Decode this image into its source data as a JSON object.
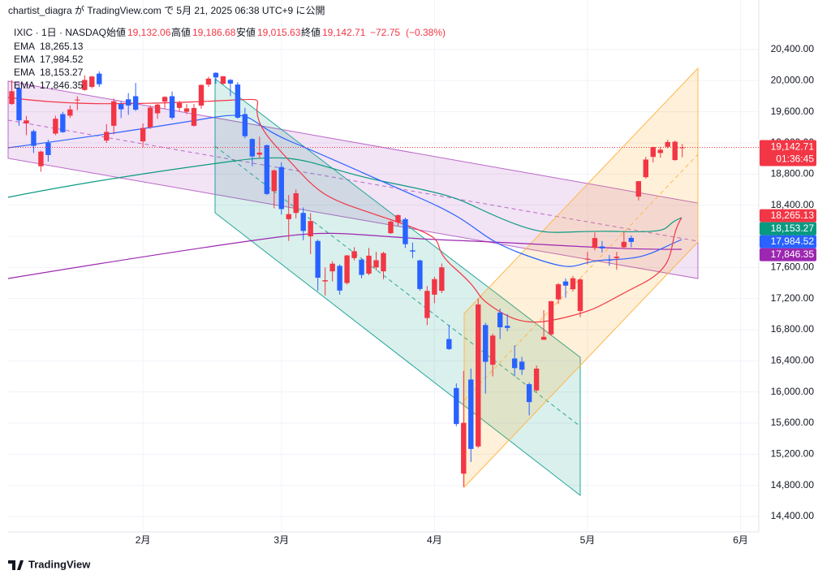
{
  "chart_data": {
    "type": "candlestick",
    "published": "chartist_diagra が TradingView.com で 5月 21, 2025 06:38 UTC+9 に公開",
    "symbol": "IXIC · 1日 · NASDAQ",
    "legend": {
      "open_name": "始値",
      "open": {
        "value": 19132.06,
        "label": "19,132.06"
      },
      "high_name": "高値",
      "high": {
        "value": 19186.68,
        "label": "19,186.68"
      },
      "low_name": "安値",
      "low": {
        "value": 19015.63,
        "label": "19,015.63"
      },
      "close_name": "終値",
      "close": {
        "value": 19142.71,
        "label": "19,142.71"
      },
      "change": {
        "value": -72.75,
        "label": "−72.75"
      },
      "change_pct": {
        "value": -0.38,
        "label": "(−0.38%)"
      }
    },
    "indicators": [
      {
        "name": "EMA",
        "value": {
          "value": 18265.13,
          "label": "18,265.13"
        },
        "color": "#f23645"
      },
      {
        "name": "EMA",
        "value": {
          "value": 17984.52,
          "label": "17,984.52"
        },
        "color": "#2962ff"
      },
      {
        "name": "EMA",
        "value": {
          "value": 18153.27,
          "label": "18,153.27"
        },
        "color": "#089981"
      },
      {
        "name": "EMA",
        "value": {
          "value": 17846.35,
          "label": "17,846.35"
        },
        "color": "#9c27b0"
      }
    ],
    "price_tag": {
      "value": 19142.71,
      "label": "19,142.71"
    },
    "countdown": "01:36:45",
    "brand": "TradingView",
    "up_color": "#f23645",
    "down_color": "#2962ff",
    "xlim": [
      -0.5,
      102.5
    ],
    "xticks": [
      {
        "value": 18,
        "label": "2月"
      },
      {
        "value": 37,
        "label": "3月"
      },
      {
        "value": 58,
        "label": "4月"
      },
      {
        "value": 79,
        "label": "5月"
      },
      {
        "value": 100,
        "label": "6月"
      }
    ],
    "ylim": [
      14202,
      20744
    ],
    "yticks": [
      {
        "value": 14400,
        "label": "14,400.00"
      },
      {
        "value": 14800,
        "label": "14,800.00"
      },
      {
        "value": 15200,
        "label": "15,200.00"
      },
      {
        "value": 15600,
        "label": "15,600.00"
      },
      {
        "value": 16000,
        "label": "16,000.00"
      },
      {
        "value": 16400,
        "label": "16,400.00"
      },
      {
        "value": 16800,
        "label": "16,800.00"
      },
      {
        "value": 17200,
        "label": "17,200.00"
      },
      {
        "value": 17600,
        "label": "17,600.00"
      },
      {
        "value": 18000,
        "label": "18,000.00"
      },
      {
        "value": 18400,
        "label": "18,400.00"
      },
      {
        "value": 18800,
        "label": "18,800.00"
      },
      {
        "value": 19200,
        "label": "19,200.00"
      },
      {
        "value": 19600,
        "label": "19,600.00"
      },
      {
        "value": 20000,
        "label": "20,000.00"
      },
      {
        "value": 20400,
        "label": "20,400.00"
      }
    ],
    "grid": true,
    "open": [
      19700,
      19900,
      19450,
      19350,
      18900,
      19200,
      19320,
      19570,
      19550,
      19750,
      19880,
      19920,
      20090,
      19230,
      19420,
      19700,
      19760,
      19800,
      19220,
      19400,
      19580,
      19730,
      19800,
      19650,
      19600,
      19420,
      19680,
      19950,
      20100,
      19960,
      20010,
      19950,
      19570,
      19250,
      19050,
      19170,
      18580,
      18890,
      18220,
      18300,
      18300,
      18000,
      17940,
      17420,
      17550,
      17620,
      17400,
      17720,
      17700,
      17520,
      17600,
      17550,
      18040,
      18180,
      18220,
      17820,
      17690,
      16950,
      17250,
      17300,
      16680,
      16050,
      14950,
      16160,
      15300,
      16860,
      16350,
      17020,
      16850,
      16430,
      16390,
      16100,
      16020,
      16670,
      16740,
      17190,
      17420,
      17320,
      17040,
      17700,
      17850,
      17870,
      17700,
      17720,
      17860,
      17980,
      18510,
      18760,
      19020,
      19070,
      19150,
      18980,
      19132.06
    ],
    "high": [
      20007,
      19945,
      19545,
      19370,
      19100,
      19240,
      19550,
      19600,
      19680,
      19800,
      20070,
      20060,
      20120,
      19440,
      19770,
      19730,
      19840,
      19970,
      19450,
      19680,
      19700,
      19800,
      19860,
      19740,
      19700,
      19700,
      19950,
      20050,
      20110,
      20060,
      20020,
      19980,
      19650,
      19260,
      19280,
      19180,
      18860,
      18950,
      18530,
      18600,
      18370,
      18300,
      17960,
      17600,
      17680,
      17640,
      17760,
      17860,
      17710,
      17850,
      17800,
      17800,
      18200,
      18280,
      18240,
      17920,
      17700,
      17360,
      17480,
      17650,
      16860,
      16110,
      16270,
      16300,
      17200,
      16890,
      16750,
      17070,
      17000,
      16600,
      16450,
      16120,
      16340,
      17050,
      17170,
      17400,
      17460,
      17490,
      17460,
      17800,
      18050,
      17940,
      17760,
      17800,
      18060,
      18010,
      18710,
      19020,
      19150,
      19150,
      19240,
      19230,
      19186.68
    ],
    "low": [
      19690,
      19420,
      19300,
      19070,
      18830,
      18960,
      19300,
      19330,
      19520,
      19620,
      19870,
      19900,
      19920,
      19200,
      19310,
      19520,
      19560,
      19610,
      19140,
      19380,
      19510,
      19640,
      19500,
      19600,
      19570,
      19410,
      19640,
      19920,
      19960,
      19950,
      19800,
      19510,
      19260,
      18900,
      19000,
      18530,
      18360,
      18280,
      17940,
      18230,
      17950,
      17770,
      17300,
      17240,
      17420,
      17250,
      17380,
      17690,
      17460,
      17500,
      17560,
      17450,
      18030,
      18130,
      17850,
      17720,
      17300,
      16860,
      17140,
      17270,
      16540,
      15560,
      14780,
      15100,
      15280,
      15980,
      16200,
      16680,
      16780,
      16200,
      16220,
      15700,
      16000,
      16670,
      16720,
      17130,
      17210,
      17290,
      16960,
      17640,
      17820,
      17790,
      17620,
      17570,
      17840,
      17860,
      18460,
      18740,
      18950,
      19010,
      19130,
      18970,
      19015.63
    ],
    "close": [
      19864,
      19490,
      19489,
      19162,
      19088,
      19044,
      19511,
      19338,
      19630,
      19757,
      20009,
      20053,
      19954,
      19341,
      19734,
      19632,
      19681,
      19627,
      19391,
      19654,
      19692,
      19791,
      19523,
      19714,
      19643,
      19649,
      19945,
      20026,
      20041,
      20056,
      19962,
      19524,
      19286,
      19026,
      19075,
      18544,
      18847,
      18350,
      18285,
      18553,
      18069,
      18196,
      17468,
      17436,
      17648,
      17303,
      17754,
      17808,
      17504,
      17751,
      17692,
      17784,
      18189,
      18272,
      17899,
      17804,
      17323,
      17299,
      17450,
      17601,
      16551,
      15588,
      15603,
      15268,
      17125,
      16387,
      16724,
      16831,
      16823,
      16307,
      16286,
      15870,
      16300,
      16708,
      17166,
      17383,
      17366,
      17461,
      17446,
      17711,
      17978,
      17844,
      17690,
      17738,
      17929,
      17928,
      18708,
      18986,
      19146,
      19112,
      19211,
      19215,
      19142.71
    ]
  }
}
